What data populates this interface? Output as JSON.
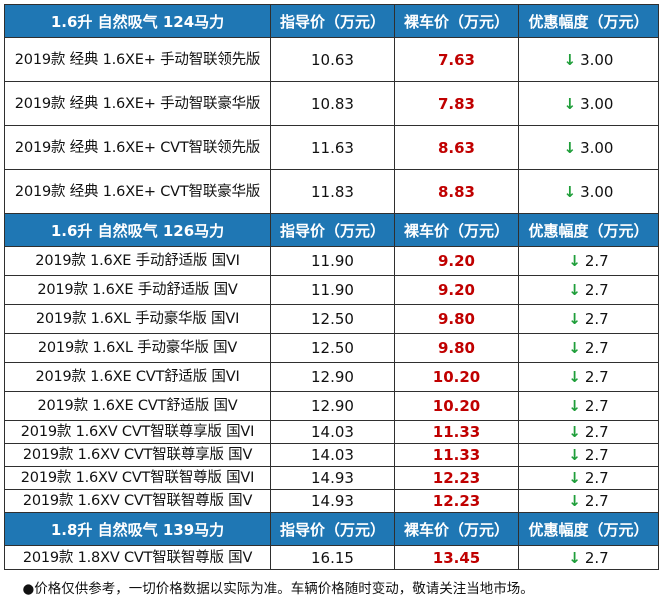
{
  "columns": {
    "guide": "指导价（万元）",
    "bare": "裸车价（万元）",
    "discount": "优惠幅度（万元）"
  },
  "sections": [
    {
      "title": "1.6升 自然吸气 124马力",
      "rows": [
        {
          "model": "2019款 经典 1.6XE+ 手动智联领先版",
          "guide": "10.63",
          "bare": "7.63",
          "discount": "3.00"
        },
        {
          "model": "2019款 经典 1.6XE+ 手动智联豪华版",
          "guide": "10.83",
          "bare": "7.83",
          "discount": "3.00"
        },
        {
          "model": "2019款 经典 1.6XE+ CVT智联领先版",
          "guide": "11.63",
          "bare": "8.63",
          "discount": "3.00"
        },
        {
          "model": "2019款 经典 1.6XE+ CVT智联豪华版",
          "guide": "11.83",
          "bare": "8.83",
          "discount": "3.00"
        }
      ]
    },
    {
      "title": "1.6升 自然吸气 126马力",
      "rows": [
        {
          "model": "2019款 1.6XE 手动舒适版 国VI",
          "guide": "11.90",
          "bare": "9.20",
          "discount": "2.7"
        },
        {
          "model": "2019款 1.6XE 手动舒适版 国V",
          "guide": "11.90",
          "bare": "9.20",
          "discount": "2.7"
        },
        {
          "model": "2019款 1.6XL 手动豪华版 国VI",
          "guide": "12.50",
          "bare": "9.80",
          "discount": "2.7"
        },
        {
          "model": "2019款 1.6XL 手动豪华版 国V",
          "guide": "12.50",
          "bare": "9.80",
          "discount": "2.7"
        },
        {
          "model": "2019款 1.6XE CVT舒适版 国VI",
          "guide": "12.90",
          "bare": "10.20",
          "discount": "2.7"
        },
        {
          "model": "2019款 1.6XE CVT舒适版 国V",
          "guide": "12.90",
          "bare": "10.20",
          "discount": "2.7"
        },
        {
          "model": "2019款 1.6XV CVT智联尊享版 国VI",
          "guide": "14.03",
          "bare": "11.33",
          "discount": "2.7"
        },
        {
          "model": "2019款 1.6XV CVT智联尊享版 国V",
          "guide": "14.03",
          "bare": "11.33",
          "discount": "2.7"
        },
        {
          "model": "2019款 1.6XV CVT智联智尊版 国VI",
          "guide": "14.93",
          "bare": "12.23",
          "discount": "2.7"
        },
        {
          "model": "2019款 1.6XV CVT智联智尊版 国V",
          "guide": "14.93",
          "bare": "12.23",
          "discount": "2.7"
        }
      ]
    },
    {
      "title": "1.8升 自然吸气 139马力",
      "rows": [
        {
          "model": "2019款 1.8XV CVT智联智尊版 国V",
          "guide": "16.15",
          "bare": "13.45",
          "discount": "2.7"
        }
      ]
    }
  ],
  "arrow_symbol": "↓",
  "note": "●价格仅供参考，一切价格数据以实际为准。车辆价格随时变动，敬请关注当地市场。",
  "colors": {
    "header_bg": "#1f77b4",
    "header_text": "#ffffff",
    "bare_price": "#c00000",
    "arrow": "#1f9e3a"
  }
}
